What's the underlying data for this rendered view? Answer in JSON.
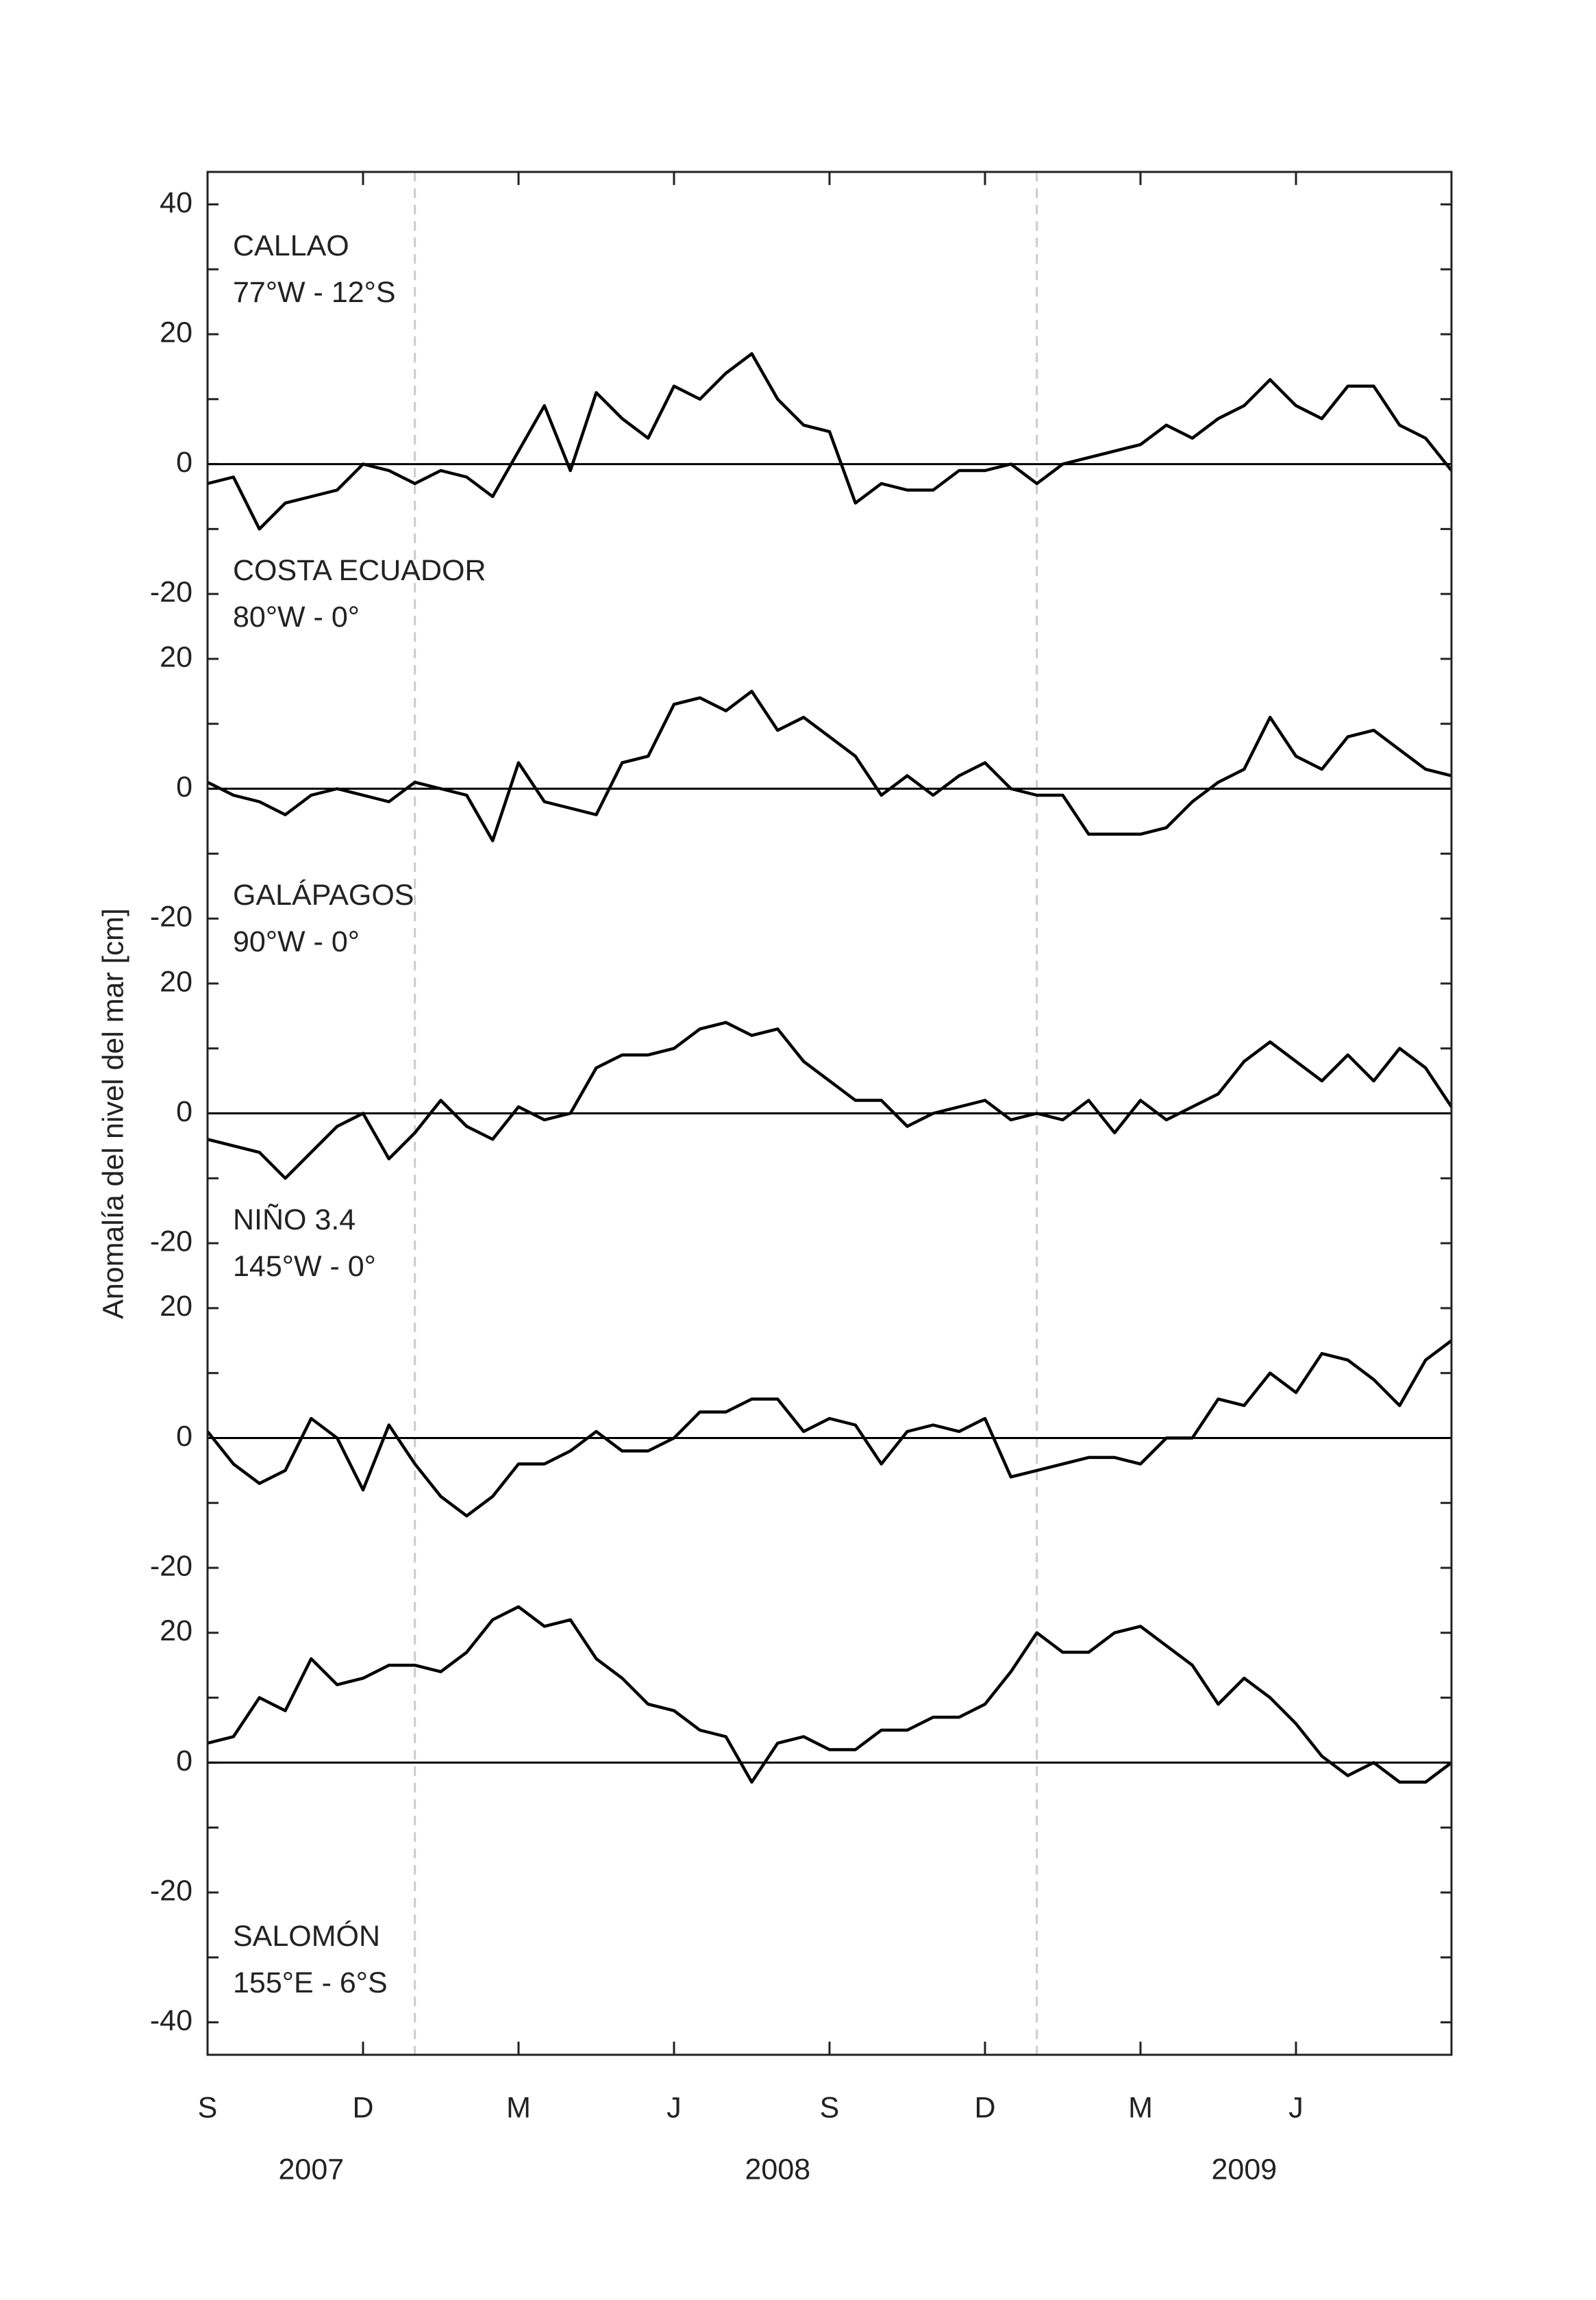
{
  "y_label": "Anomalía del nivel del mar [cm]",
  "x_axis": {
    "x": [
      0,
      0.5,
      1,
      1.5,
      2,
      2.5,
      3,
      3.5,
      4,
      4.5,
      5,
      5.5,
      6,
      6.5,
      7,
      7.5,
      8,
      8.5,
      9,
      9.5,
      10,
      10.5,
      11,
      11.5,
      12,
      12.5,
      13,
      13.5,
      14,
      14.5,
      15,
      15.5,
      16,
      16.5,
      17,
      17.5,
      18,
      18.5,
      19,
      19.5,
      20,
      20.5,
      21,
      21.5,
      22,
      22.5,
      23,
      23.5,
      24
    ],
    "xlim": [
      0,
      24
    ],
    "xticks": [
      {
        "value": 0,
        "label": "S"
      },
      {
        "value": 3,
        "label": "D"
      },
      {
        "value": 6,
        "label": "M"
      },
      {
        "value": 9,
        "label": "J"
      },
      {
        "value": 12,
        "label": "S"
      },
      {
        "value": 15,
        "label": "D"
      },
      {
        "value": 18,
        "label": "M"
      },
      {
        "value": 21,
        "label": "J"
      }
    ],
    "year_ticks": [
      {
        "value": 2,
        "label": "2007"
      },
      {
        "value": 11,
        "label": "2008"
      },
      {
        "value": 20,
        "label": "2009"
      }
    ],
    "vlines": [
      4,
      16
    ]
  },
  "chart_data": [
    {
      "type": "line",
      "title": "CALLAO",
      "subtitle": "77°W - 12°S",
      "label_corner": "top-left",
      "color": "#000000",
      "ylim": [
        -25,
        45
      ],
      "yticks": [
        -20,
        0,
        20,
        40
      ],
      "minor_yticks": [
        -10,
        10,
        30
      ],
      "zero_line": true,
      "values": [
        -3,
        -2,
        -10,
        -6,
        -5,
        -4,
        0,
        -1,
        -3,
        -1,
        -2,
        -5,
        2,
        9,
        -1,
        11,
        7,
        4,
        12,
        10,
        14,
        17,
        10,
        6,
        5,
        -6,
        -3,
        -4,
        -4,
        -1,
        -1,
        0,
        -3,
        0,
        1,
        2,
        3,
        6,
        4,
        7,
        9,
        13,
        9,
        7,
        12,
        12,
        6,
        4,
        -1
      ]
    },
    {
      "type": "line",
      "title": "COSTA ECUADOR",
      "subtitle": "80°W - 0°",
      "label_corner": "top-left",
      "color": "#000000",
      "ylim": [
        -25,
        25
      ],
      "yticks": [
        -20,
        0,
        20
      ],
      "minor_yticks": [
        -10,
        10
      ],
      "zero_line": true,
      "values": [
        1,
        -1,
        -2,
        -4,
        -1,
        0,
        -1,
        -2,
        1,
        0,
        -1,
        -8,
        4,
        -2,
        -3,
        -4,
        4,
        5,
        13,
        14,
        12,
        15,
        9,
        11,
        8,
        5,
        -1,
        2,
        -1,
        2,
        4,
        0,
        -1,
        -1,
        -7,
        -7,
        -7,
        -6,
        -2,
        1,
        3,
        11,
        5,
        3,
        8,
        9,
        6,
        3,
        2
      ]
    },
    {
      "type": "line",
      "title": "GALÁPAGOS",
      "subtitle": "90°W - 0°",
      "label_corner": "top-left",
      "color": "#000000",
      "ylim": [
        -25,
        25
      ],
      "yticks": [
        -20,
        0,
        20
      ],
      "minor_yticks": [
        -10,
        10
      ],
      "zero_line": true,
      "values": [
        -4,
        -5,
        -6,
        -10,
        -6,
        -2,
        0,
        -7,
        -3,
        2,
        -2,
        -4,
        1,
        -1,
        0,
        7,
        9,
        9,
        10,
        13,
        14,
        12,
        13,
        8,
        5,
        2,
        2,
        -2,
        0,
        1,
        2,
        -1,
        0,
        -1,
        2,
        -3,
        2,
        -1,
        1,
        3,
        8,
        11,
        8,
        5,
        9,
        5,
        10,
        7,
        1
      ]
    },
    {
      "type": "line",
      "title": "NIÑO 3.4",
      "subtitle": "145°W - 0°",
      "label_corner": "top-left",
      "color": "#000000",
      "ylim": [
        -25,
        25
      ],
      "yticks": [
        -20,
        0,
        20
      ],
      "minor_yticks": [
        -10,
        10
      ],
      "zero_line": true,
      "values": [
        1,
        -4,
        -7,
        -5,
        3,
        0,
        -8,
        2,
        -4,
        -9,
        -12,
        -9,
        -4,
        -4,
        -2,
        1,
        -2,
        -2,
        0,
        4,
        4,
        6,
        6,
        1,
        3,
        2,
        -4,
        1,
        2,
        1,
        3,
        -6,
        -5,
        -4,
        -3,
        -3,
        -4,
        0,
        0,
        6,
        5,
        10,
        7,
        13,
        12,
        9,
        5,
        12,
        15
      ]
    },
    {
      "type": "line",
      "title": "SALOMÓN",
      "subtitle": "155°E - 6°S",
      "label_corner": "bottom-left",
      "color": "#000000",
      "ylim": [
        -45,
        25
      ],
      "yticks": [
        -40,
        -20,
        0,
        20
      ],
      "minor_yticks": [
        -30,
        -10,
        10
      ],
      "zero_line": true,
      "values": [
        3,
        4,
        10,
        8,
        16,
        12,
        13,
        15,
        15,
        14,
        17,
        22,
        24,
        21,
        22,
        16,
        13,
        9,
        8,
        5,
        4,
        -3,
        3,
        4,
        2,
        2,
        5,
        5,
        7,
        7,
        9,
        14,
        20,
        17,
        17,
        20,
        21,
        18,
        15,
        9,
        13,
        10,
        6,
        1,
        -2,
        0,
        -3,
        -3,
        0
      ]
    }
  ]
}
